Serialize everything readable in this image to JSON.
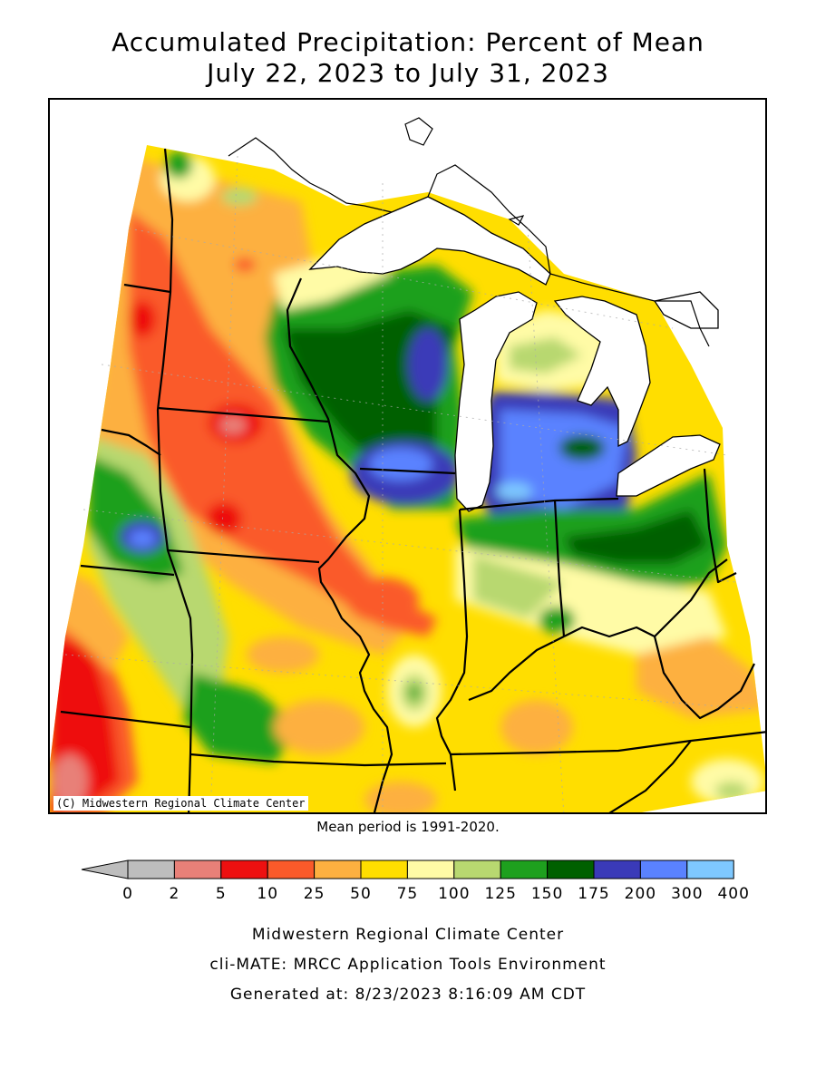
{
  "title_line1": "Accumulated Precipitation: Percent of Mean",
  "title_line2": "July 22, 2023 to July 31, 2023",
  "copyright": "(C) Midwestern Regional Climate Center",
  "mean_period": "Mean period is 1991-2020.",
  "legend": {
    "ticks": [
      "0",
      "2",
      "5",
      "10",
      "25",
      "50",
      "75",
      "100",
      "125",
      "150",
      "175",
      "200",
      "300",
      "400"
    ],
    "colors": [
      "#bdbdbd",
      "#e88078",
      "#ee1010",
      "#fa5a2a",
      "#fdb040",
      "#ffde00",
      "#fffba6",
      "#b8d870",
      "#1ea01e",
      "#006000",
      "#3a3ab8",
      "#5a82ff",
      "#7ec8ff"
    ]
  },
  "footer_line1": "Midwestern Regional Climate Center",
  "footer_line2": "cli-MATE: MRCC Application Tools Environment",
  "footer_line3": "Generated at: 8/23/2023 8:16:09 AM CDT"
}
